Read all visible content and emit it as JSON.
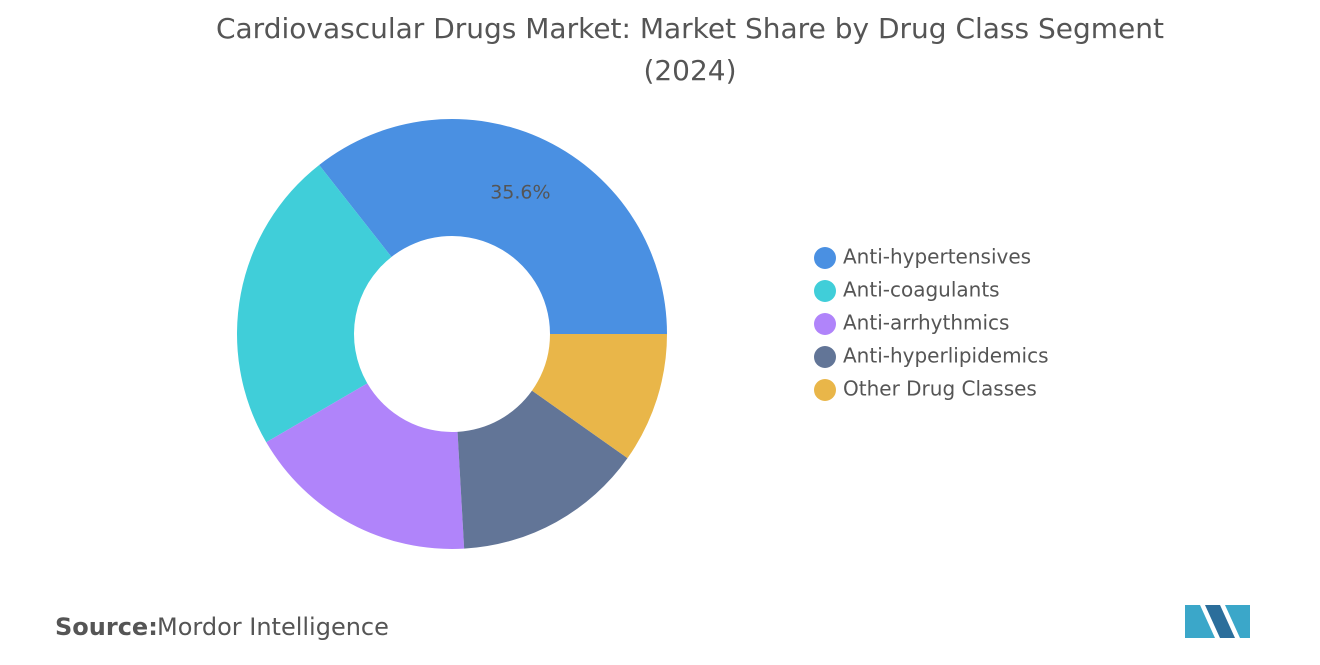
{
  "chart_data": {
    "type": "donut",
    "title": "Cardiovascular Drugs Market: Market Share by Drug Class Segment",
    "subtitle": "(2024)",
    "categories": [
      "Anti-hypertensives",
      "Anti-coagulants",
      "Anti-arrhythmics",
      "Anti-hyperlipidemics",
      "Other Drug Classes"
    ],
    "values": [
      35.6,
      22.8,
      17.5,
      14.3,
      9.8
    ],
    "value_labels": [
      "35.6%",
      null,
      null,
      null,
      null
    ],
    "colors": [
      "#4a90e2",
      "#40ced9",
      "#b084fa",
      "#627597",
      "#e9b649"
    ],
    "legend": "right"
  },
  "footer": {
    "source_label": "Source:",
    "source": "Mordor Intelligence"
  }
}
